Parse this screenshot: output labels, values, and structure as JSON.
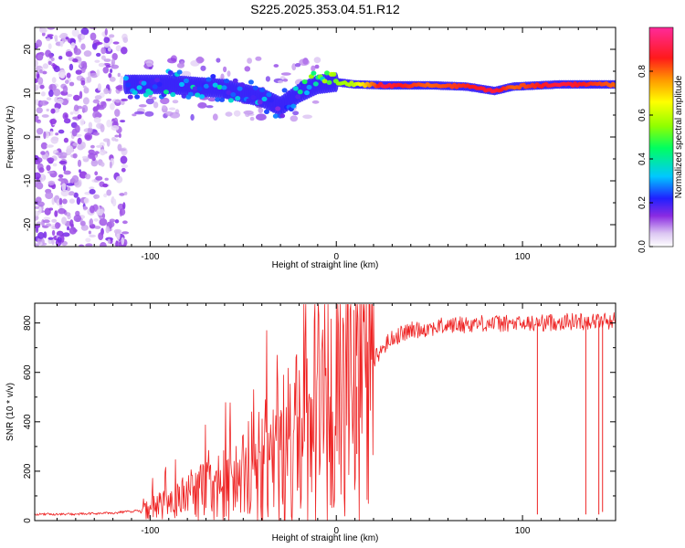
{
  "title": "S225.2025.353.04.51.R12",
  "chart_data": [
    {
      "type": "heatmap",
      "xlabel": "Height of straight line (km)",
      "ylabel": "Frequency (Hz)",
      "xlim": [
        -162,
        150
      ],
      "ylim": [
        -25,
        25
      ],
      "xticks": [
        -100,
        0,
        100
      ],
      "yticks": [
        -20,
        -10,
        0,
        10,
        20
      ],
      "xtick_labels": [
        "-100",
        "0",
        "100"
      ],
      "ytick_labels": [
        "-20",
        "-10",
        "0",
        "10",
        "20"
      ],
      "colorbar": {
        "label": "Normalized spectral amplitude",
        "range": [
          0,
          1
        ],
        "ticks": [
          0,
          0.2,
          0.4,
          0.6,
          0.8
        ],
        "tick_labels": [
          "0.0",
          "0.2",
          "0.4",
          "0.6",
          "0.8"
        ]
      },
      "noise_region": {
        "x": [
          -162,
          -113
        ],
        "freq": [
          -25,
          25
        ],
        "amplitude": 0.1
      },
      "ridge": [
        {
          "x": -113,
          "freq": 12,
          "amplitude": 0.25
        },
        {
          "x": -90,
          "freq": 12,
          "amplitude": 0.3
        },
        {
          "x": -60,
          "freq": 11,
          "amplitude": 0.3
        },
        {
          "x": -40,
          "freq": 9,
          "amplitude": 0.25
        },
        {
          "x": -30,
          "freq": 7,
          "amplitude": 0.2
        },
        {
          "x": -20,
          "freq": 10,
          "amplitude": 0.3
        },
        {
          "x": -10,
          "freq": 12,
          "amplitude": 0.45
        },
        {
          "x": 0,
          "freq": 12.5,
          "amplitude": 0.55
        },
        {
          "x": 10,
          "freq": 12,
          "amplitude": 0.6
        },
        {
          "x": 25,
          "freq": 11.8,
          "amplitude": 0.9
        },
        {
          "x": 50,
          "freq": 11.8,
          "amplitude": 0.8
        },
        {
          "x": 70,
          "freq": 11.5,
          "amplitude": 0.85
        },
        {
          "x": 85,
          "freq": 10.5,
          "amplitude": 0.9
        },
        {
          "x": 95,
          "freq": 11.5,
          "amplitude": 0.8
        },
        {
          "x": 120,
          "freq": 12,
          "amplitude": 0.9
        },
        {
          "x": 150,
          "freq": 12,
          "amplitude": 0.8
        }
      ]
    },
    {
      "type": "line",
      "xlabel": "Height of straight line (km)",
      "ylabel": "SNR (10 * v/v)",
      "xlim": [
        -162,
        150
      ],
      "ylim": [
        0,
        880
      ],
      "xticks": [
        -100,
        0,
        100
      ],
      "yticks": [
        0,
        200,
        400,
        600,
        800
      ],
      "xtick_labels": [
        "-100",
        "0",
        "100"
      ],
      "ytick_labels": [
        "0",
        "200",
        "400",
        "600",
        "800"
      ],
      "series": [
        {
          "name": "SNR",
          "color": "#ee2222",
          "x": [
            -162,
            -140,
            -120,
            -105,
            -100,
            -90,
            -80,
            -70,
            -60,
            -50,
            -40,
            -30,
            -20,
            -10,
            0,
            10,
            20,
            25,
            30,
            40,
            60,
            80,
            100,
            120,
            150
          ],
          "values": [
            15,
            15,
            20,
            30,
            50,
            70,
            100,
            120,
            140,
            170,
            220,
            280,
            330,
            380,
            430,
            530,
            650,
            700,
            740,
            770,
            790,
            800,
            795,
            805,
            810
          ],
          "drops": [
            {
              "x": 11,
              "value": 270
            },
            {
              "x": 108,
              "value": 25
            },
            {
              "x": 134,
              "value": 25
            },
            {
              "x": 141,
              "value": 25
            },
            {
              "x": 143,
              "value": 35
            }
          ]
        }
      ]
    }
  ]
}
